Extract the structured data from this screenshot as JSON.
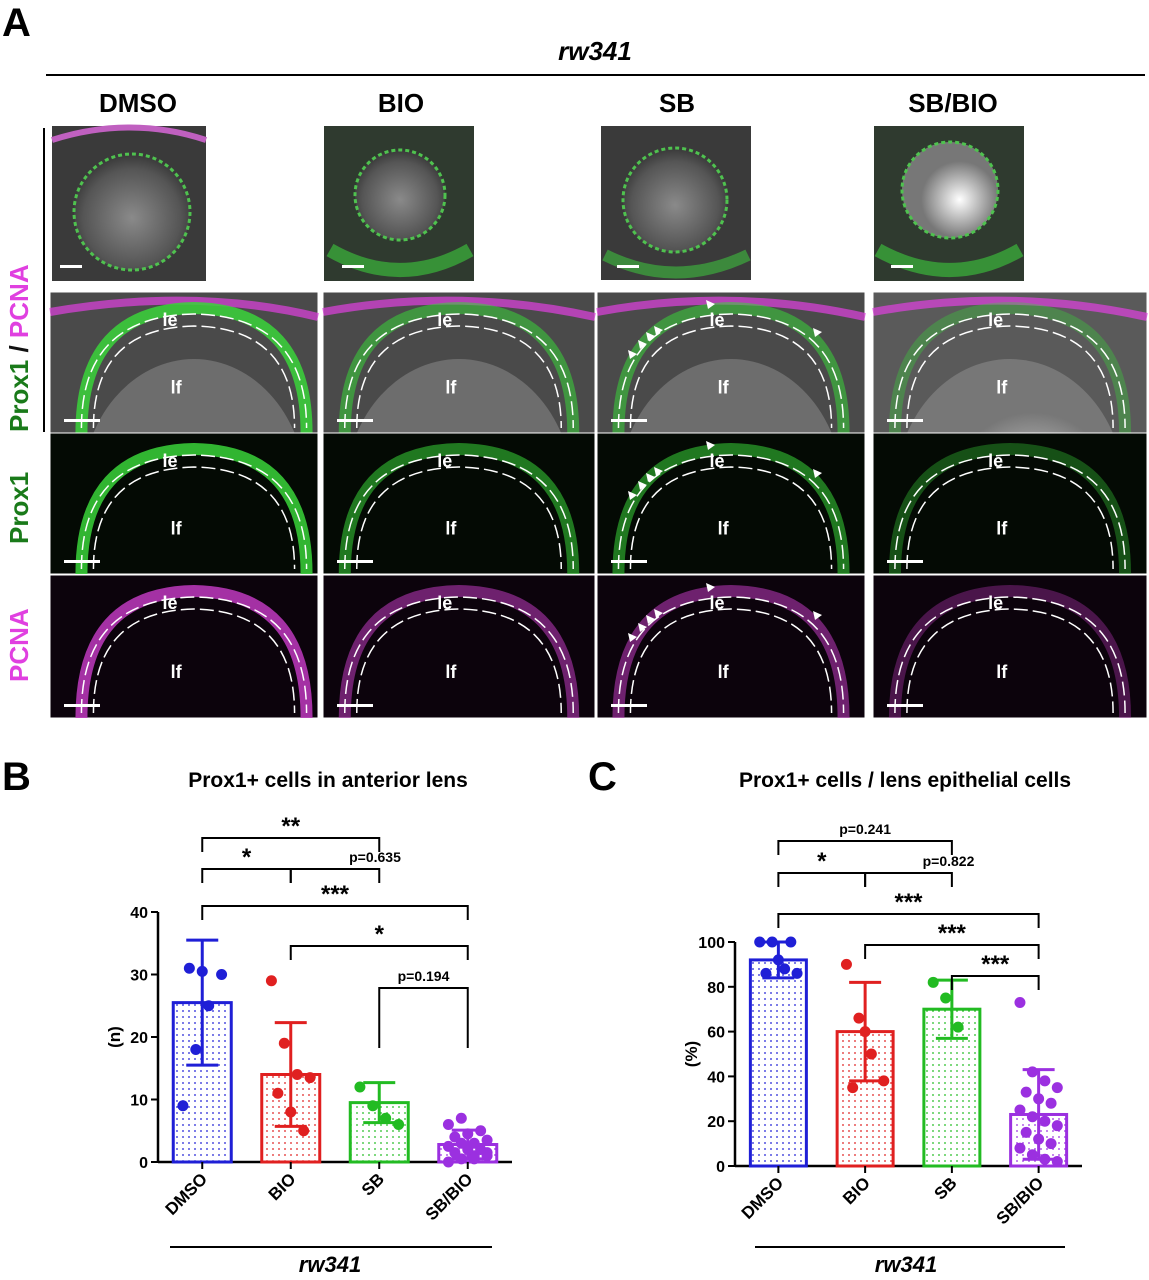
{
  "panel_a": {
    "letter": "A",
    "strain": "rw341",
    "columns": [
      "DMSO",
      "BIO",
      "SB",
      "SB/BIO"
    ],
    "row_label_merge_green": "Prox1",
    "row_label_merge_sep": " / ",
    "row_label_merge_magenta": "PCNA",
    "row_label_prox1": "Prox1",
    "row_label_pcna": "PCNA",
    "label_epithelium": "le",
    "label_fiber": "lf",
    "colors": {
      "green": "#1a7a1a",
      "magenta": "#e040e0",
      "fluor_green": "#39d339",
      "fluor_magenta": "#c03ac0"
    }
  },
  "panel_b": {
    "letter": "B",
    "strain": "rw341",
    "significance": [
      {
        "label": "**"
      },
      {
        "label": "*"
      },
      {
        "label": "p=0.635"
      },
      {
        "label": "***"
      },
      {
        "label": "*"
      },
      {
        "label": "p=0.194"
      }
    ]
  },
  "panel_c": {
    "letter": "C",
    "strain": "rw341",
    "significance": [
      {
        "label": "p=0.241"
      },
      {
        "label": "*"
      },
      {
        "label": "p=0.822"
      },
      {
        "label": "***"
      },
      {
        "label": "***"
      },
      {
        "label": "***"
      }
    ]
  },
  "chart_data": [
    {
      "type": "bar",
      "title": "Prox1+ cells in anterior lens",
      "xlabel": "",
      "ylabel": "(n)",
      "ylim": [
        0,
        40
      ],
      "yticks": [
        "0",
        "10",
        "20",
        "30",
        "40"
      ],
      "categories": [
        "DMSO",
        "BIO",
        "SB",
        "SB/BIO"
      ],
      "colors": [
        "#1f1fd6",
        "#e02020",
        "#22bb22",
        "#9b30e0"
      ],
      "values": [
        25.5,
        14.0,
        9.5,
        2.8
      ],
      "error": [
        10.0,
        8.3,
        3.2,
        2.3
      ],
      "points": [
        [
          9,
          18,
          25,
          30,
          31,
          30.5
        ],
        [
          29,
          19,
          14,
          13.5,
          11,
          8,
          5
        ],
        [
          12,
          9,
          7,
          6
        ],
        [
          0,
          0.5,
          1,
          1,
          1.5,
          2,
          2,
          2.5,
          3,
          3,
          3.5,
          4,
          4.5,
          5,
          6,
          7,
          0.5,
          1.5
        ]
      ]
    },
    {
      "type": "bar",
      "title": "Prox1+ cells / lens epithelial cells",
      "xlabel": "",
      "ylabel": "(%)",
      "ylim": [
        0,
        100
      ],
      "yticks": [
        "0",
        "20",
        "40",
        "60",
        "80",
        "100"
      ],
      "categories": [
        "DMSO",
        "BIO",
        "SB",
        "SB/BIO"
      ],
      "colors": [
        "#1f1fd6",
        "#e02020",
        "#22bb22",
        "#9b30e0"
      ],
      "values": [
        92,
        60,
        70,
        23
      ],
      "error": [
        8,
        22,
        13,
        20
      ],
      "points": [
        [
          100,
          100,
          88,
          86,
          86,
          92,
          100
        ],
        [
          90,
          66,
          50,
          38,
          35,
          60
        ],
        [
          82,
          75,
          62
        ],
        [
          73,
          42,
          38,
          35,
          33,
          30,
          28,
          25,
          22,
          20,
          18,
          15,
          12,
          10,
          8,
          5,
          3,
          2
        ]
      ]
    }
  ]
}
